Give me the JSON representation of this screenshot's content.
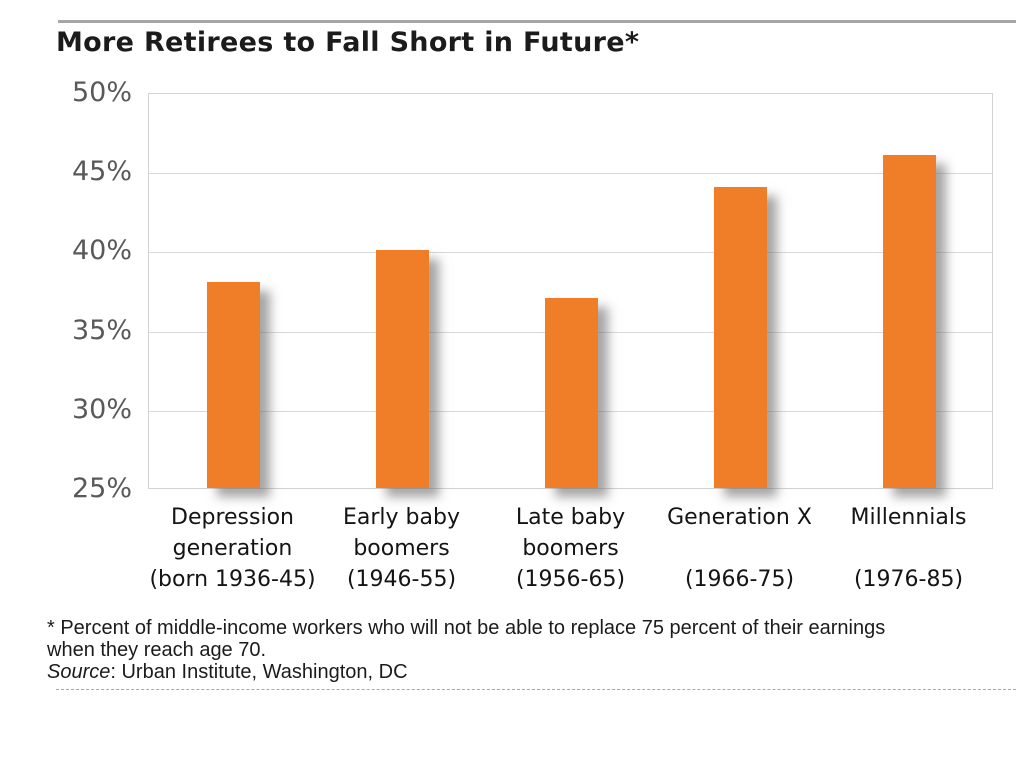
{
  "title": "More Retirees to Fall Short in Future*",
  "footnote": {
    "line1": "* Percent of middle-income workers who will not be able to replace 75 percent of their earnings",
    "line2": "when they reach age 70.",
    "source_label": "Source",
    "source_rest": ": Urban Institute, Washington, DC"
  },
  "chart_data": {
    "type": "bar",
    "title": "More Retirees to Fall Short in Future*",
    "categories": [
      "Depression generation (born 1936-45)",
      "Early baby boomers (1946-55)",
      "Late baby boomers (1956-65)",
      "Generation X (1966-75)",
      "Millennials (1976-85)"
    ],
    "category_keys": [
      "depression-generation",
      "early-baby-boomers",
      "late-baby-boomers",
      "generation-x",
      "millennials"
    ],
    "category_label_lines": [
      [
        "Depression",
        "generation",
        "(born 1936-45)"
      ],
      [
        "Early baby",
        "boomers",
        "(1946-55)"
      ],
      [
        "Late baby",
        "boomers",
        "(1956-65)"
      ],
      [
        "Generation X",
        "",
        "(1966-75)"
      ],
      [
        "Millennials",
        "",
        "(1976-85)"
      ]
    ],
    "values": [
      38,
      40,
      37,
      44,
      46
    ],
    "unit": "%",
    "xlabel": "",
    "ylabel": "",
    "ylim": [
      25,
      50
    ],
    "ytick_step": 5,
    "ytick_labels": [
      "50%",
      "45%",
      "40%",
      "35%",
      "30%",
      "25%"
    ],
    "grid": true,
    "legend": false,
    "bar_color": "#F07E28",
    "shadow_color": "#696969"
  }
}
